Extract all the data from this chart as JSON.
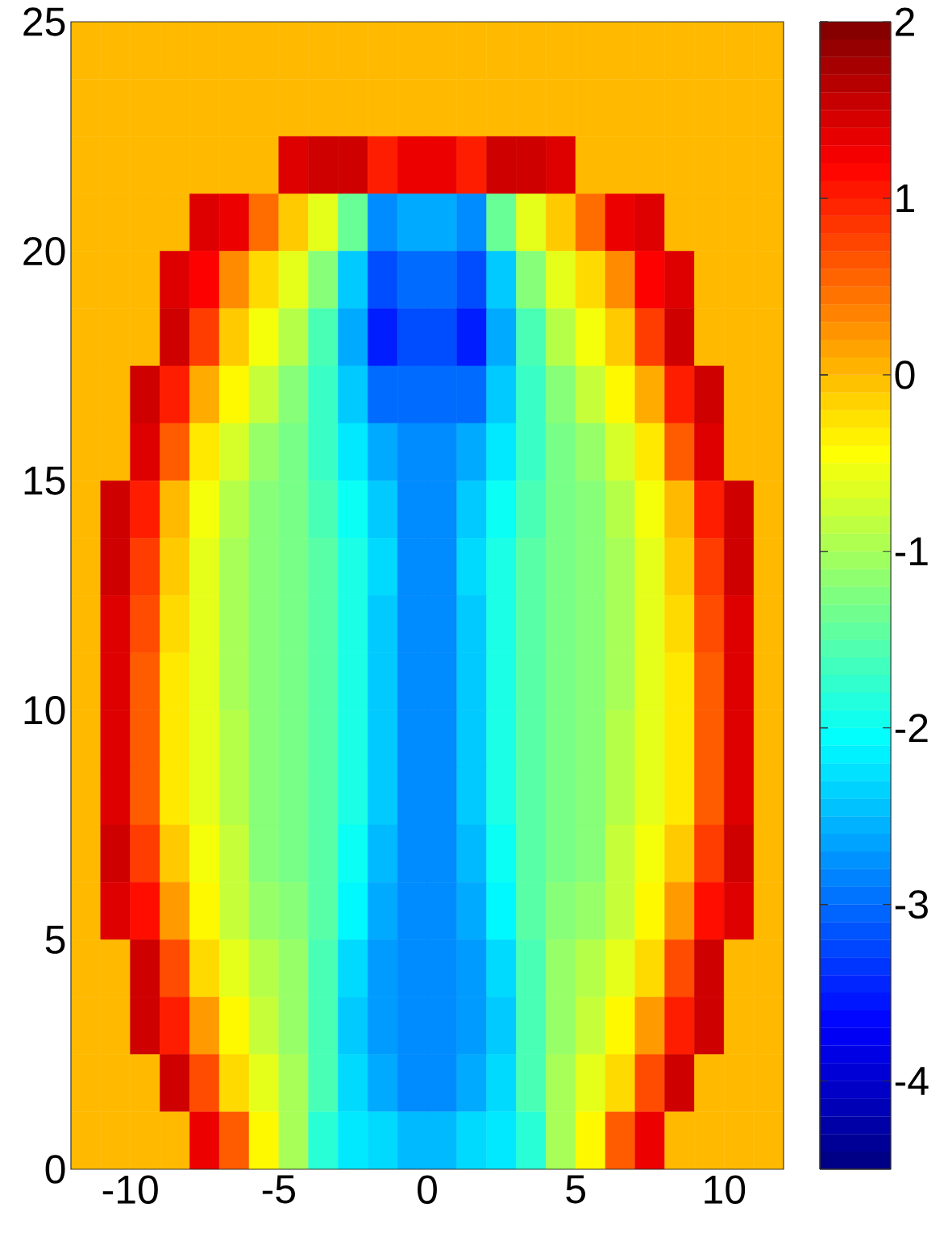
{
  "chart_data": {
    "type": "heatmap",
    "x": [
      -11.5,
      -10.5,
      -9.5,
      -8.5,
      -7.5,
      -6.5,
      -5.5,
      -4.5,
      -3.5,
      -2.5,
      -1.5,
      -0.5,
      0.5,
      1.5,
      2.5,
      3.5,
      4.5,
      5.5,
      6.5,
      7.5,
      8.5,
      9.5,
      10.5,
      11.5
    ],
    "y": [
      24.375,
      23.125,
      21.875,
      20.625,
      19.375,
      18.125,
      16.875,
      15.625,
      14.375,
      13.125,
      11.875,
      10.625,
      9.375,
      8.125,
      6.875,
      5.625,
      4.375,
      3.125,
      1.875,
      0.625
    ],
    "cells": [
      [
        0,
        0,
        0,
        0,
        0,
        0,
        0,
        0,
        0,
        0,
        0,
        0,
        0,
        0,
        0,
        0,
        0,
        0,
        0,
        0,
        0,
        0,
        0,
        0
      ],
      [
        0,
        0,
        0,
        0,
        0,
        0,
        0,
        0,
        0,
        0,
        0,
        0,
        0,
        0,
        0,
        0,
        0,
        0,
        0,
        0,
        0,
        0,
        0,
        0
      ],
      [
        0,
        0,
        0,
        0,
        0,
        0,
        0,
        1.4,
        1.5,
        1.5,
        1.0,
        1.3,
        1.3,
        1.0,
        1.5,
        1.5,
        1.4,
        0,
        0,
        0,
        0,
        0,
        0,
        0
      ],
      [
        0,
        0,
        0,
        0,
        1.4,
        1.3,
        0.5,
        -0.1,
        -0.6,
        -1.4,
        -2.8,
        -2.6,
        -2.6,
        -2.8,
        -1.4,
        -0.6,
        -0.1,
        0.5,
        1.3,
        1.4,
        0,
        0,
        0,
        0
      ],
      [
        0,
        0,
        0,
        1.4,
        1.2,
        0.3,
        -0.2,
        -0.6,
        -1.2,
        -2.4,
        -3.2,
        -3.0,
        -3.0,
        -3.2,
        -2.4,
        -1.2,
        -0.6,
        -0.2,
        0.3,
        1.2,
        1.4,
        0,
        0,
        0
      ],
      [
        0,
        0,
        0,
        1.5,
        0.8,
        -0.1,
        -0.5,
        -0.9,
        -1.6,
        -2.6,
        -3.5,
        -3.2,
        -3.2,
        -3.5,
        -2.6,
        -1.6,
        -0.9,
        -0.5,
        -0.1,
        0.8,
        1.5,
        0,
        0,
        0
      ],
      [
        0,
        0,
        1.5,
        1.0,
        0.1,
        -0.4,
        -0.8,
        -1.2,
        -1.7,
        -2.4,
        -3.0,
        -3.0,
        -3.0,
        -3.0,
        -2.4,
        -1.7,
        -1.2,
        -0.8,
        -0.4,
        0.1,
        1.0,
        1.5,
        0,
        0
      ],
      [
        0,
        0,
        1.4,
        0.6,
        -0.3,
        -0.7,
        -1.1,
        -1.3,
        -1.7,
        -2.2,
        -2.6,
        -2.8,
        -2.8,
        -2.6,
        -2.2,
        -1.7,
        -1.3,
        -1.1,
        -0.7,
        -0.3,
        0.6,
        1.4,
        0,
        0
      ],
      [
        0,
        1.5,
        1.0,
        0.0,
        -0.5,
        -0.9,
        -1.2,
        -1.3,
        -1.6,
        -2.0,
        -2.4,
        -2.8,
        -2.8,
        -2.4,
        -2.0,
        -1.6,
        -1.3,
        -1.2,
        -0.9,
        -0.5,
        0.0,
        1.0,
        1.5,
        0
      ],
      [
        0,
        1.5,
        0.8,
        -0.1,
        -0.6,
        -1.0,
        -1.2,
        -1.3,
        -1.5,
        -1.9,
        -2.3,
        -2.8,
        -2.8,
        -2.3,
        -1.9,
        -1.5,
        -1.3,
        -1.2,
        -1.0,
        -0.6,
        -0.1,
        0.8,
        1.5,
        0
      ],
      [
        0,
        1.4,
        0.7,
        -0.2,
        -0.6,
        -1.0,
        -1.2,
        -1.3,
        -1.5,
        -1.9,
        -2.4,
        -2.8,
        -2.8,
        -2.4,
        -1.9,
        -1.5,
        -1.3,
        -1.2,
        -1.0,
        -0.6,
        -0.2,
        0.7,
        1.4,
        0
      ],
      [
        0,
        1.4,
        0.6,
        -0.3,
        -0.6,
        -1.0,
        -1.2,
        -1.3,
        -1.5,
        -1.9,
        -2.4,
        -2.8,
        -2.8,
        -2.4,
        -1.9,
        -1.5,
        -1.3,
        -1.2,
        -1.0,
        -0.6,
        -0.3,
        0.6,
        1.4,
        0
      ],
      [
        0,
        1.4,
        0.6,
        -0.3,
        -0.6,
        -0.9,
        -1.2,
        -1.3,
        -1.5,
        -1.9,
        -2.4,
        -2.8,
        -2.8,
        -2.4,
        -1.9,
        -1.5,
        -1.3,
        -1.2,
        -0.9,
        -0.6,
        -0.3,
        0.6,
        1.4,
        0
      ],
      [
        0,
        1.4,
        0.6,
        -0.3,
        -0.6,
        -0.9,
        -1.2,
        -1.3,
        -1.5,
        -1.9,
        -2.4,
        -2.8,
        -2.8,
        -2.4,
        -1.9,
        -1.5,
        -1.3,
        -1.2,
        -0.9,
        -0.6,
        -0.3,
        0.6,
        1.4,
        0
      ],
      [
        0,
        1.5,
        0.8,
        -0.1,
        -0.5,
        -0.8,
        -1.2,
        -1.3,
        -1.5,
        -2.0,
        -2.5,
        -2.8,
        -2.8,
        -2.5,
        -2.0,
        -1.5,
        -1.3,
        -1.2,
        -0.8,
        -0.5,
        -0.1,
        0.8,
        1.5,
        0
      ],
      [
        0,
        1.4,
        1.1,
        0.2,
        -0.4,
        -0.8,
        -1.1,
        -1.2,
        -1.5,
        -2.1,
        -2.6,
        -2.8,
        -2.8,
        -2.6,
        -2.1,
        -1.5,
        -1.2,
        -1.1,
        -0.8,
        -0.4,
        0.2,
        1.1,
        1.4,
        0
      ],
      [
        0,
        0,
        1.5,
        0.7,
        -0.2,
        -0.6,
        -0.9,
        -1.1,
        -1.6,
        -2.3,
        -2.7,
        -2.8,
        -2.8,
        -2.7,
        -2.3,
        -1.6,
        -1.1,
        -0.9,
        -0.6,
        -0.2,
        0.7,
        1.5,
        0,
        0
      ],
      [
        0,
        0,
        1.5,
        1.0,
        0.2,
        -0.4,
        -0.8,
        -1.1,
        -1.6,
        -2.4,
        -2.7,
        -2.8,
        -2.8,
        -2.7,
        -2.4,
        -1.6,
        -1.1,
        -0.8,
        -0.4,
        0.2,
        1.0,
        1.5,
        0,
        0
      ],
      [
        0,
        0,
        0,
        1.5,
        0.7,
        -0.2,
        -0.6,
        -1.0,
        -1.6,
        -2.3,
        -2.6,
        -2.8,
        -2.8,
        -2.6,
        -2.3,
        -1.6,
        -1.0,
        -0.6,
        -0.2,
        0.7,
        1.5,
        0,
        0,
        0
      ],
      [
        0,
        0,
        0,
        0,
        1.3,
        0.6,
        -0.4,
        -1.0,
        -1.8,
        -2.2,
        -2.3,
        -2.5,
        -2.5,
        -2.3,
        -2.2,
        -1.8,
        -1.0,
        -0.4,
        0.6,
        1.3,
        0,
        0,
        0,
        0
      ]
    ],
    "xlim": [
      -12,
      12
    ],
    "ylim": [
      0,
      25
    ],
    "xticks": [
      -10,
      -5,
      0,
      5,
      10
    ],
    "yticks": [
      0,
      5,
      10,
      15,
      20,
      25
    ],
    "clim": [
      -4.5,
      2
    ],
    "cticks": [
      -4,
      -3,
      -2,
      -1,
      0,
      1,
      2
    ]
  }
}
